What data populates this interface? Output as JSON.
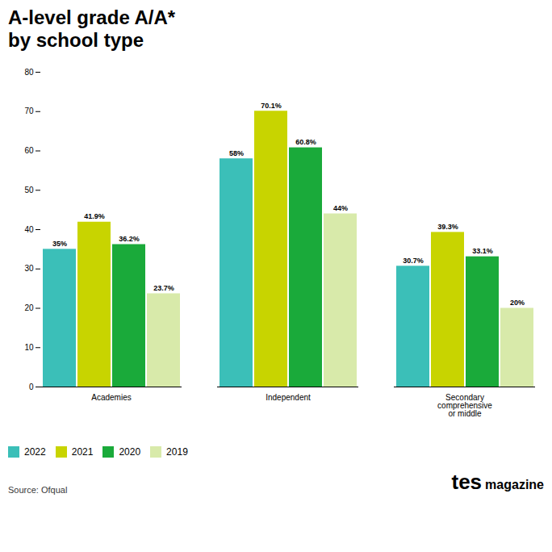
{
  "chart_data": {
    "type": "bar",
    "title": "A-level grade A/A*\nby school type",
    "categories": [
      "Academies",
      "Independent",
      "Secondary\ncomprehensive\nor middle"
    ],
    "series": [
      {
        "name": "2022",
        "color": "#3bbfb8",
        "values": [
          35.0,
          58.0,
          30.7
        ],
        "value_labels": [
          "35%",
          "58%",
          "30.7%"
        ]
      },
      {
        "name": "2021",
        "color": "#c8d400",
        "values": [
          41.9,
          70.1,
          39.3
        ],
        "value_labels": [
          "41.9%",
          "70.1%",
          "39.3%"
        ]
      },
      {
        "name": "2020",
        "color": "#1aaa3a",
        "values": [
          36.2,
          60.8,
          33.1
        ],
        "value_labels": [
          "36.2%",
          "60.8%",
          "33.1%"
        ]
      },
      {
        "name": "2019",
        "color": "#d8eaaa",
        "values": [
          23.7,
          44.0,
          20.0
        ],
        "value_labels": [
          "23.7%",
          "44%",
          "20%"
        ]
      }
    ],
    "ylim": [
      0,
      80
    ],
    "yticks": [
      0,
      10,
      20,
      30,
      40,
      50,
      60,
      70,
      80
    ],
    "grid": false,
    "data_labels": true,
    "legend": "lower left",
    "annotations": [
      "Source: Ofqual",
      "tes",
      "magazine"
    ]
  }
}
